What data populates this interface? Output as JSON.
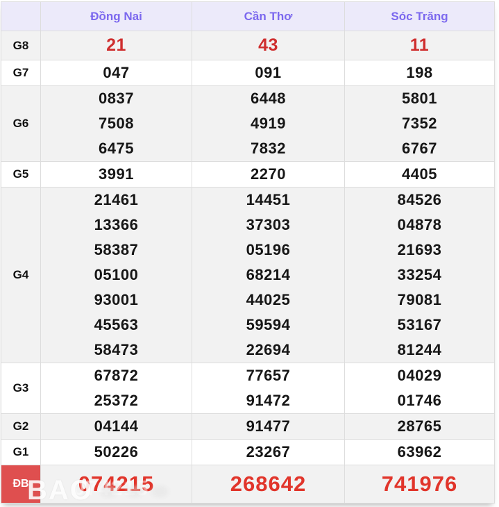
{
  "table": {
    "provinces": [
      "Đồng Nai",
      "Cần Thơ",
      "Sóc Trăng"
    ],
    "rows": [
      {
        "label": "G8",
        "values": [
          [
            "21"
          ],
          [
            "43"
          ],
          [
            "11"
          ]
        ]
      },
      {
        "label": "G7",
        "values": [
          [
            "047"
          ],
          [
            "091"
          ],
          [
            "198"
          ]
        ]
      },
      {
        "label": "G6",
        "values": [
          [
            "0837",
            "7508",
            "6475"
          ],
          [
            "6448",
            "4919",
            "7832"
          ],
          [
            "5801",
            "7352",
            "6767"
          ]
        ]
      },
      {
        "label": "G5",
        "values": [
          [
            "3991"
          ],
          [
            "2270"
          ],
          [
            "4405"
          ]
        ]
      },
      {
        "label": "G4",
        "values": [
          [
            "21461",
            "13366",
            "58387",
            "05100",
            "93001",
            "45563",
            "58473"
          ],
          [
            "14451",
            "37303",
            "05196",
            "68214",
            "44025",
            "59594",
            "22694"
          ],
          [
            "84526",
            "04878",
            "21693",
            "33254",
            "79081",
            "53167",
            "81244"
          ]
        ]
      },
      {
        "label": "G3",
        "values": [
          [
            "67872",
            "25372"
          ],
          [
            "77657",
            "91472"
          ],
          [
            "04029",
            "01746"
          ]
        ]
      },
      {
        "label": "G2",
        "values": [
          [
            "04144"
          ],
          [
            "91477"
          ],
          [
            "28765"
          ]
        ]
      },
      {
        "label": "G1",
        "values": [
          [
            "50226"
          ],
          [
            "23267"
          ],
          [
            "63962"
          ]
        ]
      },
      {
        "label": "ĐB",
        "values": [
          [
            "074215"
          ],
          [
            "268642"
          ],
          [
            "741976"
          ]
        ]
      }
    ]
  },
  "watermark": {
    "text": "BAO"
  },
  "colors": {
    "header_bg": "#eceafa",
    "header_text": "#7b68ee",
    "shade_row_bg": "#f2f2f2",
    "g8_value_red": "#cf2e2e",
    "db_value_red": "#e1352b",
    "db_label_bg": "#df4f4f",
    "value_text": "#161616",
    "border": "#dddddd"
  }
}
